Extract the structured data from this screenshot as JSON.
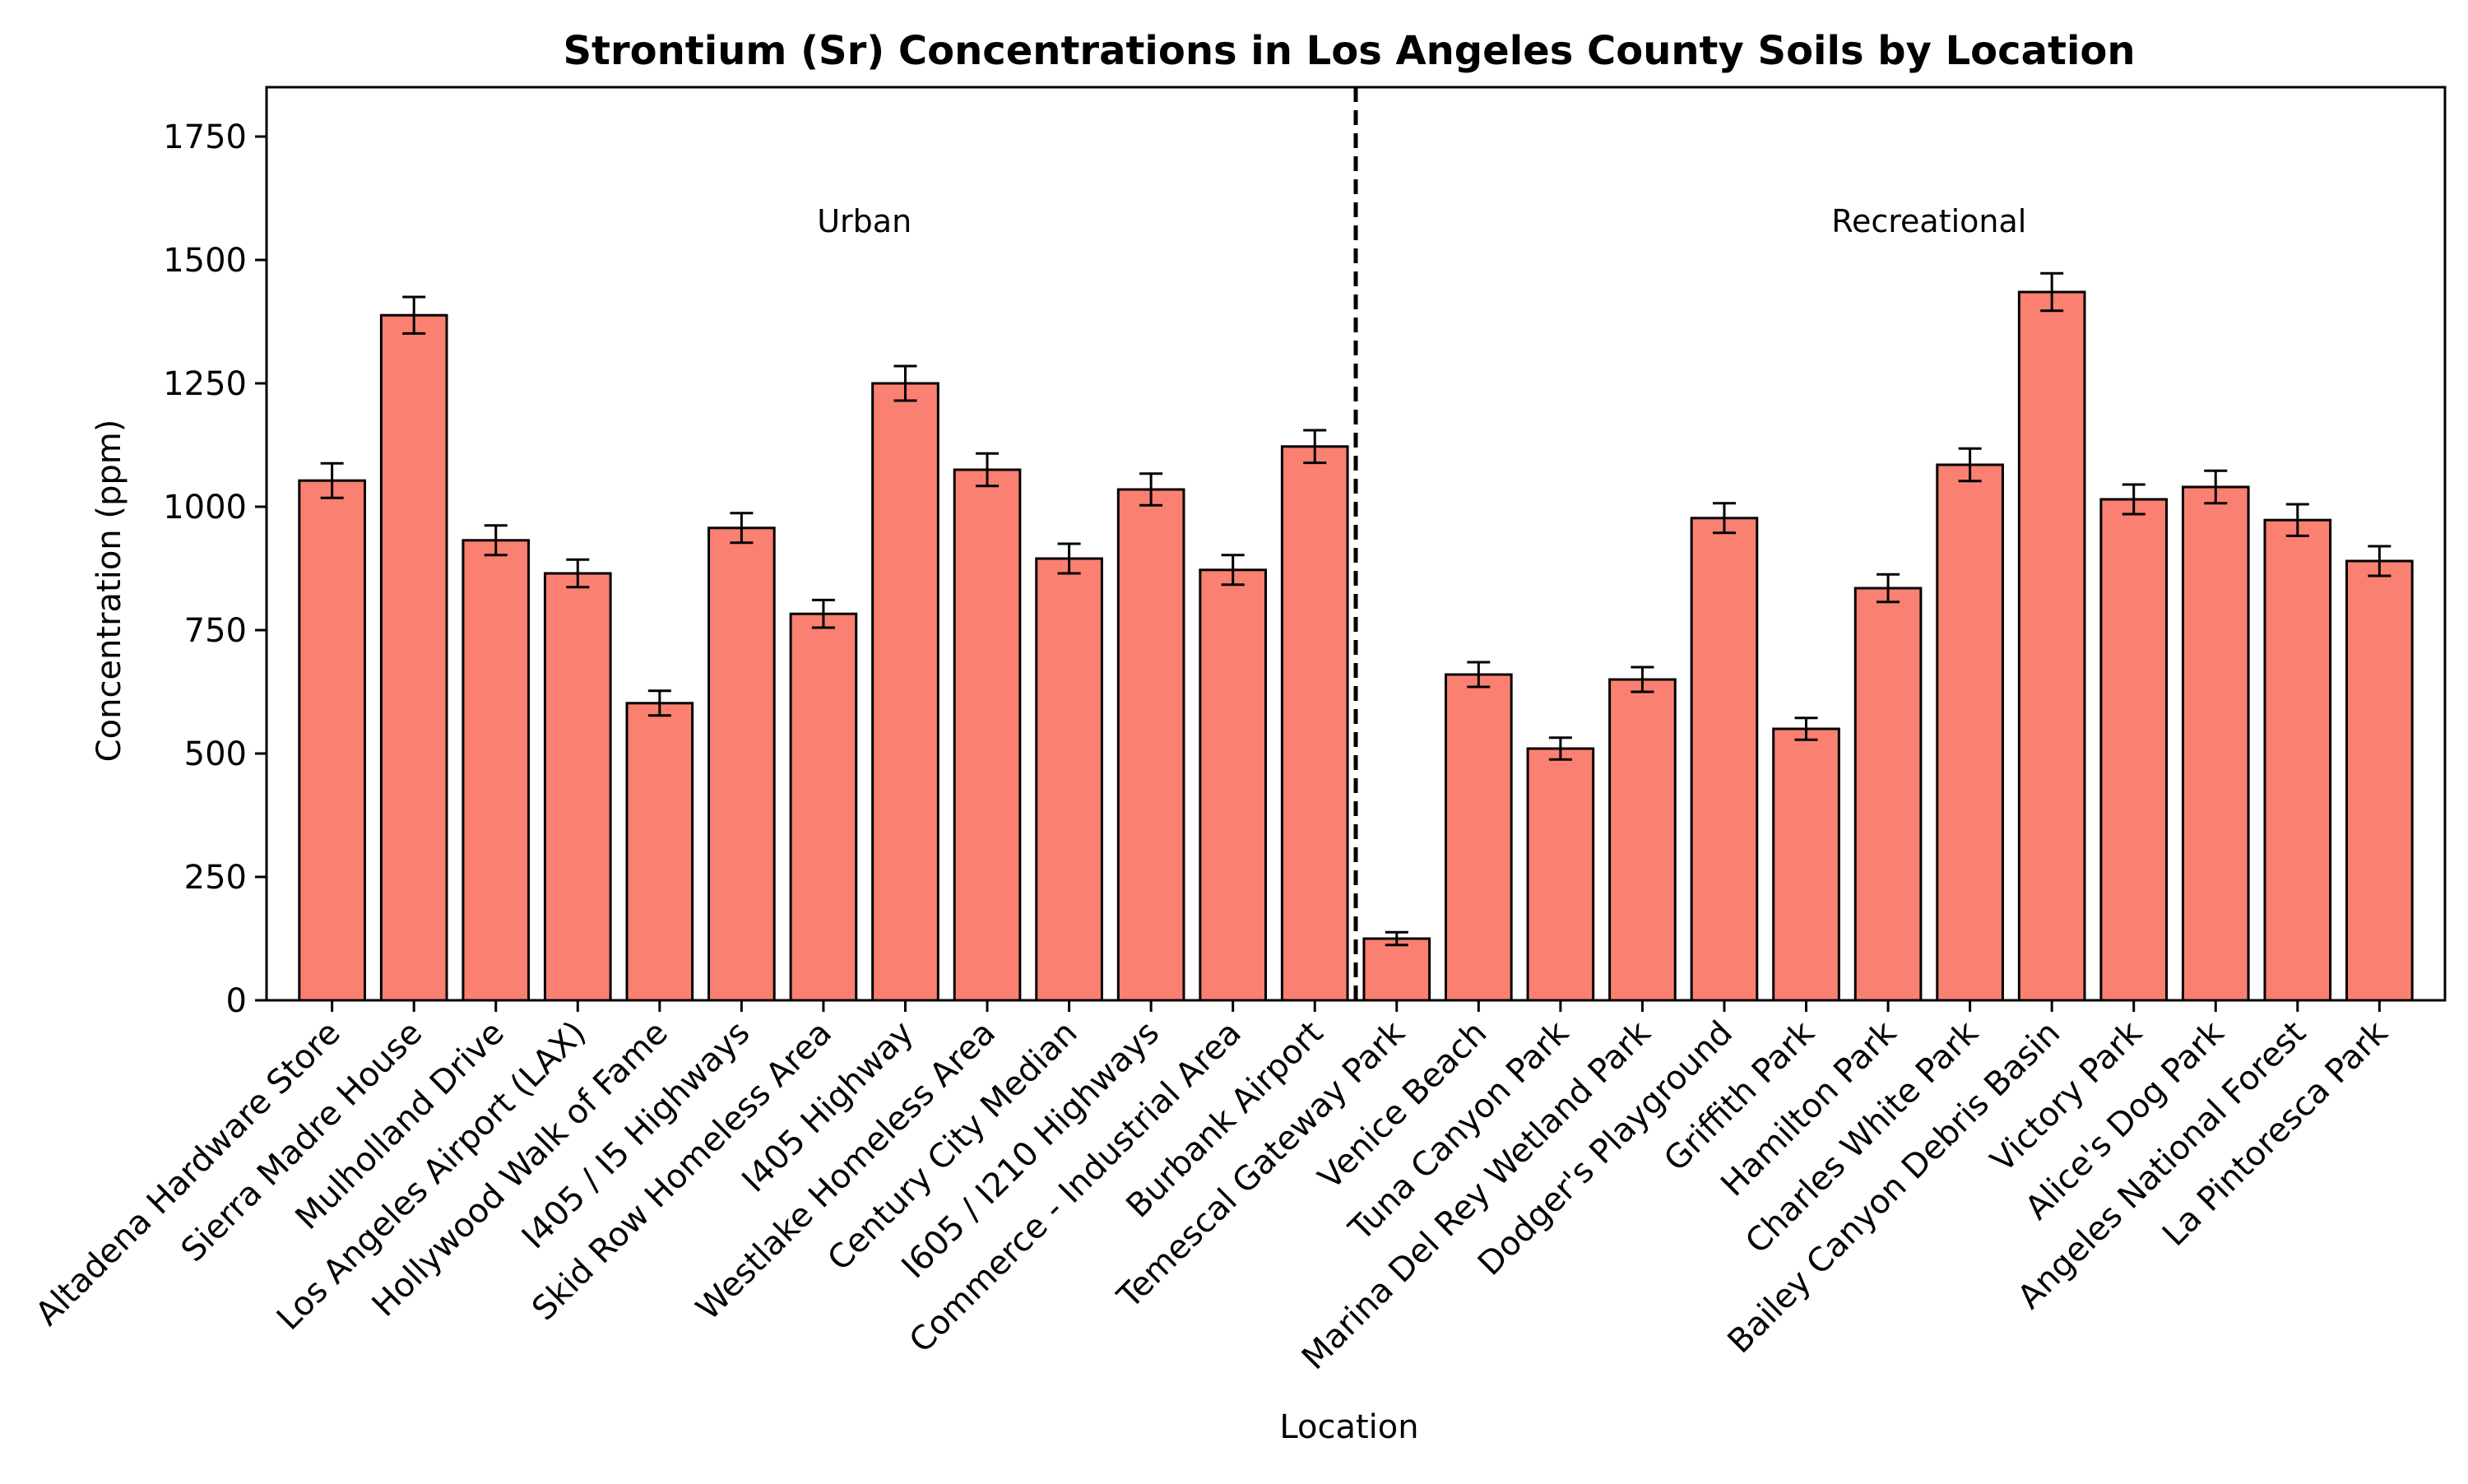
{
  "chart_data": {
    "type": "bar",
    "title": "Strontium (Sr) Concentrations in Los Angeles County Soils by Location",
    "xlabel": "Location",
    "ylabel": "Concentration (ppm)",
    "ylim": [
      0,
      1850
    ],
    "yticks": [
      0,
      250,
      500,
      750,
      1000,
      1250,
      1500,
      1750
    ],
    "grid": false,
    "bar_color": "#FA8072",
    "edge_color": "#000000",
    "categories": [
      "Altadena Hardware Store",
      "Sierra Madre House",
      "Mulholland Drive",
      "Los Angeles Airport (LAX)",
      "Hollywood Walk of Fame",
      "I405 / I5 Highways",
      "Skid Row Homeless Area",
      "I405 Highway",
      "Westlake Homeless Area",
      "Century City Median",
      "I605 / I210 Highways",
      "Commerce - Industrial Area",
      "Burbank Airport",
      "Temescal Gateway Park",
      "Venice Beach",
      "Tuna Canyon Park",
      "Marina Del Rey Wetland Park",
      "Dodger's Playground",
      "Griffith Park",
      "Hamilton Park",
      "Charles White Park",
      "Bailey Canyon Debris Basin",
      "Victory Park",
      "Alice's Dog Park",
      "Angeles National Forest",
      "La Pintoresca Park"
    ],
    "values": [
      1053,
      1388,
      932,
      865,
      602,
      957,
      783,
      1250,
      1075,
      895,
      1035,
      872,
      1122,
      125,
      660,
      510,
      650,
      977,
      550,
      835,
      1085,
      1435,
      1015,
      1040,
      973,
      890
    ],
    "errors": [
      35,
      37,
      30,
      28,
      25,
      30,
      28,
      35,
      33,
      30,
      32,
      30,
      33,
      13,
      25,
      22,
      25,
      30,
      22,
      28,
      33,
      38,
      30,
      33,
      32,
      30
    ],
    "divider": {
      "after_index": 12,
      "style": "dashed"
    },
    "annotations": [
      {
        "text": "Urban",
        "x_index": 6.5,
        "y": 1580
      },
      {
        "text": "Recreational",
        "x_index": 19.5,
        "y": 1580
      }
    ]
  }
}
